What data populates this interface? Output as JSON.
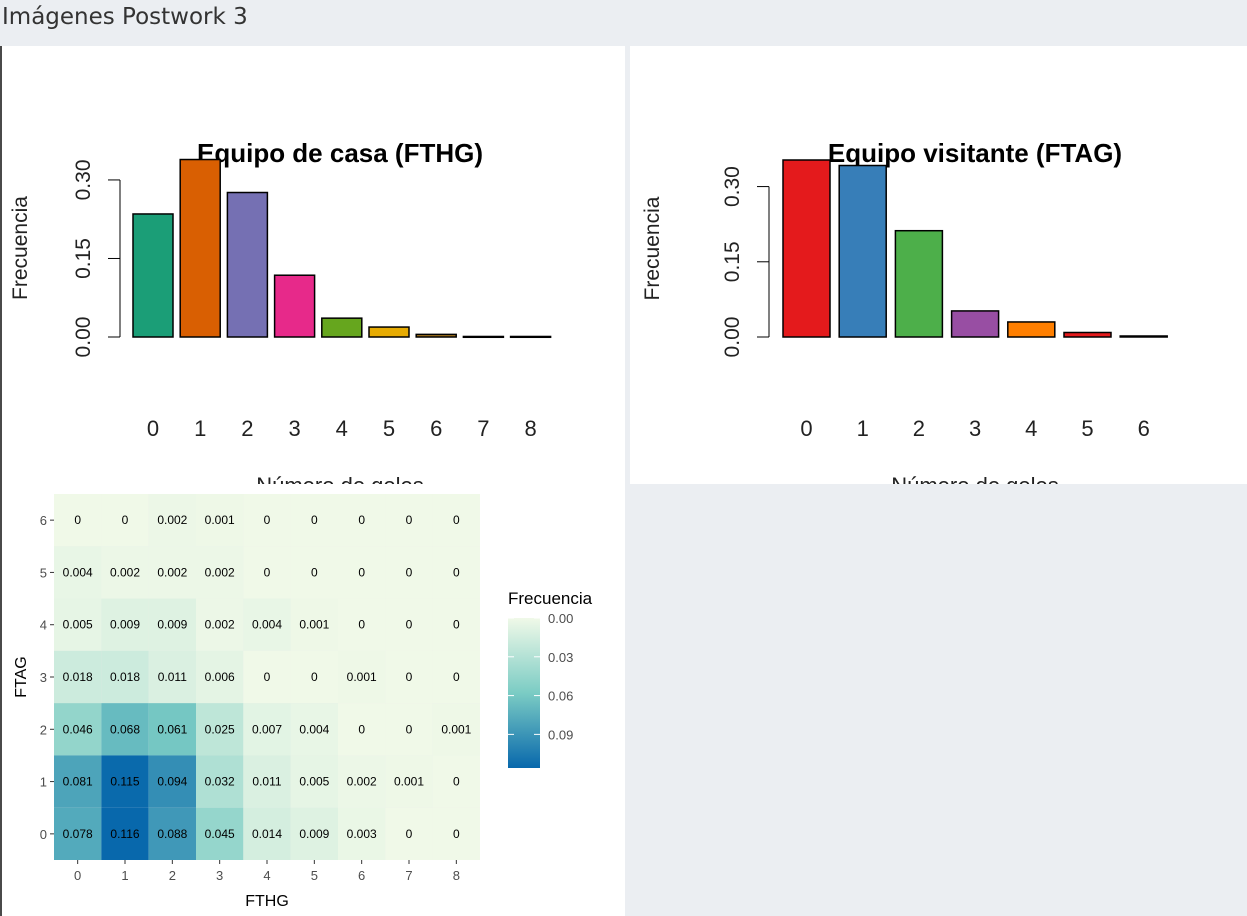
{
  "page": {
    "title": "Imágenes Postwork 3"
  },
  "colors": {
    "home_bars": [
      "#1b9e77",
      "#d95f02",
      "#7570b3",
      "#e7298a",
      "#66a61e",
      "#e6ab02",
      "#a6761d",
      "#666666",
      "#666666"
    ],
    "away_bars": [
      "#e41a1c",
      "#377eb8",
      "#4daf4a",
      "#984ea3",
      "#ff7f00",
      "#e41a1c",
      "#222222"
    ],
    "heat_low": "#f0f9e8",
    "heat_high": "#0868ac"
  },
  "chart_data": [
    {
      "type": "bar",
      "title": "Equipo de casa (FTHG)",
      "xlabel": "Número de goles",
      "ylabel": "Frecuencia",
      "categories": [
        "0",
        "1",
        "2",
        "3",
        "4",
        "5",
        "6",
        "7",
        "8"
      ],
      "values": [
        0.235,
        0.339,
        0.276,
        0.118,
        0.036,
        0.019,
        0.005,
        0.001,
        0.001
      ],
      "ylim": [
        0,
        0.34
      ],
      "yticks": [
        "0.00",
        "0.15",
        "0.30"
      ]
    },
    {
      "type": "bar",
      "title": "Equipo visitante (FTAG)",
      "xlabel": "Número de goles",
      "ylabel": "Frecuencia",
      "categories": [
        "0",
        "1",
        "2",
        "3",
        "4",
        "5",
        "6"
      ],
      "values": [
        0.353,
        0.342,
        0.212,
        0.052,
        0.03,
        0.009,
        0.002
      ],
      "ylim": [
        0,
        0.353
      ],
      "yticks": [
        "0.00",
        "0.15",
        "0.30"
      ]
    },
    {
      "type": "heatmap",
      "xlabel": "FTHG",
      "ylabel": "FTAG",
      "x": [
        "0",
        "1",
        "2",
        "3",
        "4",
        "5",
        "6",
        "7",
        "8"
      ],
      "y": [
        "0",
        "1",
        "2",
        "3",
        "4",
        "5",
        "6"
      ],
      "legend_title": "Frecuencia",
      "legend_ticks": [
        "0.00",
        "0.03",
        "0.06",
        "0.09"
      ],
      "legend_position": "right",
      "grid": true,
      "rows": [
        {
          "ftag": "6",
          "values": [
            "0",
            "0",
            "0.002",
            "0.001",
            "0",
            "0",
            "0",
            "0",
            "0"
          ]
        },
        {
          "ftag": "5",
          "values": [
            "0.004",
            "0.002",
            "0.002",
            "0.002",
            "0",
            "0",
            "0",
            "0",
            "0"
          ]
        },
        {
          "ftag": "4",
          "values": [
            "0.005",
            "0.009",
            "0.009",
            "0.002",
            "0.004",
            "0.001",
            "0",
            "0",
            "0"
          ]
        },
        {
          "ftag": "3",
          "values": [
            "0.018",
            "0.018",
            "0.011",
            "0.006",
            "0",
            "0",
            "0.001",
            "0",
            "0"
          ]
        },
        {
          "ftag": "2",
          "values": [
            "0.046",
            "0.068",
            "0.061",
            "0.025",
            "0.007",
            "0.004",
            "0",
            "0",
            "0.001"
          ]
        },
        {
          "ftag": "1",
          "values": [
            "0.081",
            "0.115",
            "0.094",
            "0.032",
            "0.011",
            "0.005",
            "0.002",
            "0.001",
            "0"
          ]
        },
        {
          "ftag": "0",
          "values": [
            "0.078",
            "0.116",
            "0.088",
            "0.045",
            "0.014",
            "0.009",
            "0.003",
            "0",
            "0"
          ]
        }
      ]
    }
  ]
}
